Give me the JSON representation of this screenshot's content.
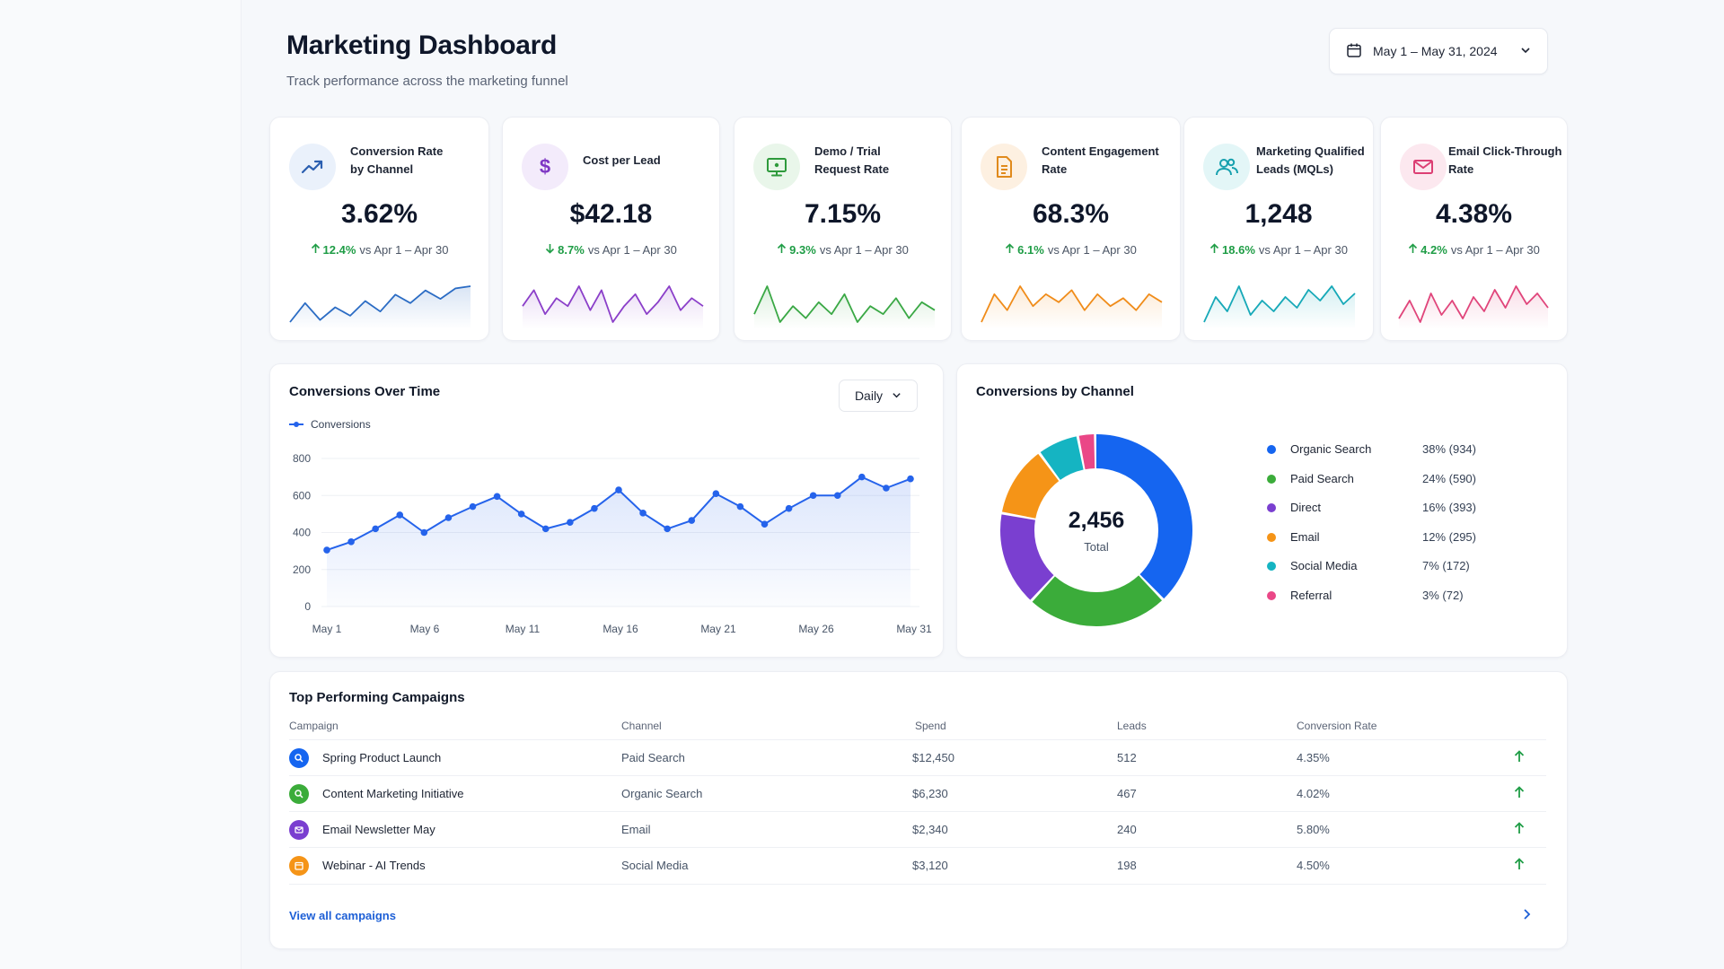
{
  "header": {
    "title": "Marketing Dashboard",
    "subtitle": "Track performance across the marketing funnel",
    "date_range": "May 1 – May 31, 2024"
  },
  "kpis": [
    {
      "label_line1": "Conversion Rate",
      "label_line2": "by Channel",
      "value": "3.62%",
      "direction": "up",
      "change": "12.4%",
      "compare": "vs Apr 1 – Apr 30",
      "color": "#2b6cc4",
      "icon": "trend-up-icon"
    },
    {
      "label_line1": "Cost per Lead",
      "label_line2": "",
      "value": "$42.18",
      "direction": "down",
      "change": "8.7%",
      "compare": "vs Apr 1 – Apr 30",
      "color": "#8b3fc9",
      "icon": "dollar-icon"
    },
    {
      "label_line1": "Demo / Trial",
      "label_line2": "Request Rate",
      "value": "7.15%",
      "direction": "up",
      "change": "9.3%",
      "compare": "vs Apr 1 – Apr 30",
      "color": "#3aa845",
      "icon": "monitor-icon"
    },
    {
      "label_line1": "Content Engagement",
      "label_line2": "Rate",
      "value": "68.3%",
      "direction": "up",
      "change": "6.1%",
      "compare": "vs Apr 1 – Apr 30",
      "color": "#f08c1a",
      "icon": "document-icon"
    },
    {
      "label_line1": "Marketing Qualified",
      "label_line2": "Leads (MQLs)",
      "value": "1,248",
      "direction": "up",
      "change": "18.6%",
      "compare": "vs Apr 1 – Apr 30",
      "color": "#17a9b8",
      "icon": "users-icon"
    },
    {
      "label_line1": "Email Click-Through",
      "label_line2": "Rate",
      "value": "4.38%",
      "direction": "up",
      "change": "4.2%",
      "compare": "vs Apr 1 – Apr 30",
      "color": "#e0457b",
      "icon": "mail-icon"
    }
  ],
  "conversions_over_time": {
    "title": "Conversions Over Time",
    "granularity": "Daily",
    "legend": "Conversions"
  },
  "conversions_by_channel": {
    "title": "Conversions by Channel",
    "total_value": "2,456",
    "total_label": "Total",
    "channels": [
      {
        "name": "Organic Search",
        "display": "38% (934)",
        "color": "#1565f0"
      },
      {
        "name": "Paid Search",
        "display": "24% (590)",
        "color": "#3bac3a"
      },
      {
        "name": "Direct",
        "display": "16% (393)",
        "color": "#7a3fd0"
      },
      {
        "name": "Email",
        "display": "12% (295)",
        "color": "#f59417"
      },
      {
        "name": "Social Media",
        "display": "7% (172)",
        "color": "#15b4c2"
      },
      {
        "name": "Referral",
        "display": "3% (72)",
        "color": "#ea4787"
      }
    ]
  },
  "campaigns": {
    "title": "Top Performing Campaigns",
    "columns": [
      "Campaign",
      "Channel",
      "Spend",
      "Leads",
      "Conversion Rate"
    ],
    "rows": [
      {
        "name": "Spring Product Launch",
        "channel": "Paid Search",
        "spend": "$12,450",
        "leads": "512",
        "rate": "4.35%",
        "color": "#1565f0",
        "icon": "search-icon"
      },
      {
        "name": "Content Marketing Initiative",
        "channel": "Organic Search",
        "spend": "$6,230",
        "leads": "467",
        "rate": "4.02%",
        "color": "#3bac3a",
        "icon": "search-icon"
      },
      {
        "name": "Email Newsletter May",
        "channel": "Email",
        "spend": "$2,340",
        "leads": "240",
        "rate": "5.80%",
        "color": "#7a3fd0",
        "icon": "mail-icon"
      },
      {
        "name": "Webinar - AI Trends",
        "channel": "Social Media",
        "spend": "$3,120",
        "leads": "198",
        "rate": "4.50%",
        "color": "#f59417",
        "icon": "calendar-icon"
      }
    ],
    "view_all": "View all campaigns"
  },
  "chart_data": [
    {
      "type": "line",
      "title": "Conversions Over Time",
      "series": [
        {
          "name": "Conversions",
          "values": [
            305,
            350,
            420,
            495,
            400,
            480,
            540,
            595,
            500,
            420,
            455,
            530,
            630,
            505,
            420,
            465,
            610,
            540,
            445,
            530,
            600,
            600,
            700,
            640,
            690
          ]
        }
      ],
      "x_tick_labels": [
        "May 1",
        "May 6",
        "May 11",
        "May 16",
        "May 21",
        "May 26",
        "May 31"
      ],
      "y_ticks": [
        0,
        200,
        400,
        600,
        800
      ],
      "ylim": [
        0,
        800
      ],
      "grid": true,
      "legend": "top-left",
      "color": "#2563eb"
    },
    {
      "type": "pie",
      "title": "Conversions by Channel",
      "labels": [
        "Organic Search",
        "Paid Search",
        "Direct",
        "Email",
        "Social Media",
        "Referral"
      ],
      "values": [
        934,
        590,
        393,
        295,
        172,
        72
      ],
      "colors": [
        "#1565f0",
        "#3bac3a",
        "#7a3fd0",
        "#f59417",
        "#15b4c2",
        "#ea4787"
      ],
      "legend": "right"
    }
  ],
  "sparklines": [
    [
      10,
      28,
      12,
      24,
      16,
      30,
      20,
      36,
      28,
      40,
      32,
      42,
      44
    ],
    [
      22,
      30,
      18,
      26,
      22,
      32,
      20,
      30,
      14,
      22,
      28,
      18,
      24,
      32,
      20,
      26,
      22
    ],
    [
      20,
      34,
      16,
      24,
      18,
      26,
      20,
      30,
      16,
      24,
      20,
      28,
      18,
      26,
      22
    ],
    [
      12,
      26,
      18,
      30,
      20,
      26,
      22,
      28,
      18,
      26,
      20,
      24,
      18,
      26,
      22
    ],
    [
      10,
      24,
      16,
      30,
      14,
      22,
      16,
      24,
      18,
      28,
      22,
      30,
      20,
      26
    ],
    [
      14,
      24,
      12,
      28,
      16,
      24,
      14,
      26,
      18,
      30,
      20,
      32,
      22,
      28,
      20
    ]
  ]
}
